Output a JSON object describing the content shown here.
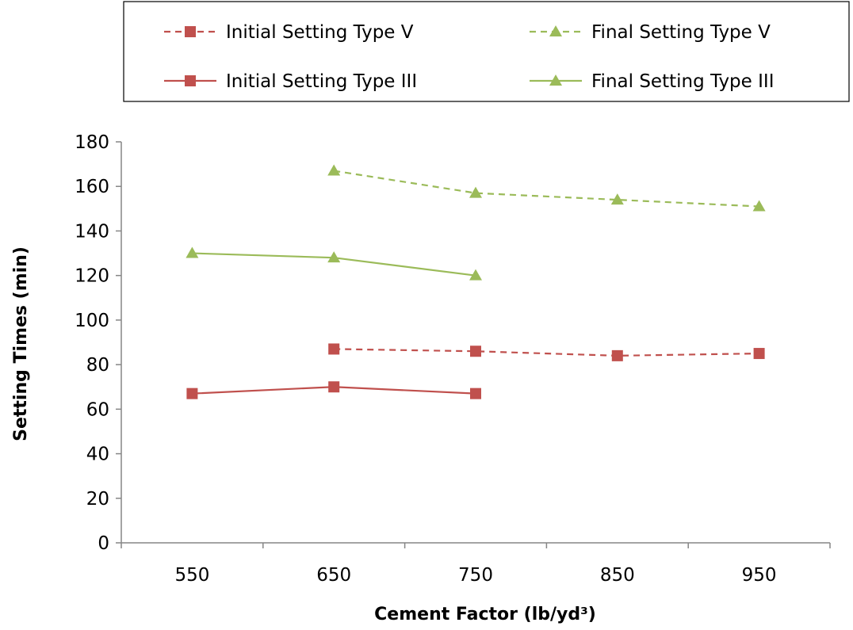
{
  "chart_data": {
    "type": "line",
    "xlabel": "Cement Factor  (lb/yd³)",
    "ylabel": "Setting Times  (min)",
    "x_ticks": [
      "550",
      "650",
      "750",
      "850",
      "950"
    ],
    "y_ticks": [
      "0",
      "20",
      "40",
      "60",
      "80",
      "100",
      "120",
      "140",
      "160",
      "180"
    ],
    "xlim": [
      500,
      1000
    ],
    "ylim": [
      0,
      180
    ],
    "grid": false,
    "legend_position": "top",
    "series": [
      {
        "name": "Initial Setting Type V",
        "color": "#c0504d",
        "marker": "square",
        "dash": true,
        "x": [
          650,
          750,
          850,
          950
        ],
        "y": [
          87,
          86,
          84,
          85
        ]
      },
      {
        "name": "Final Setting Type V",
        "color": "#9bbb59",
        "marker": "triangle",
        "dash": true,
        "x": [
          650,
          750,
          850,
          950
        ],
        "y": [
          167,
          157,
          154,
          151
        ]
      },
      {
        "name": "Initial Setting Type III",
        "color": "#c0504d",
        "marker": "square",
        "dash": false,
        "x": [
          550,
          650,
          750
        ],
        "y": [
          67,
          70,
          67
        ]
      },
      {
        "name": "Final Setting Type III",
        "color": "#9bbb59",
        "marker": "triangle",
        "dash": false,
        "x": [
          550,
          650,
          750
        ],
        "y": [
          130,
          128,
          120
        ]
      }
    ]
  }
}
